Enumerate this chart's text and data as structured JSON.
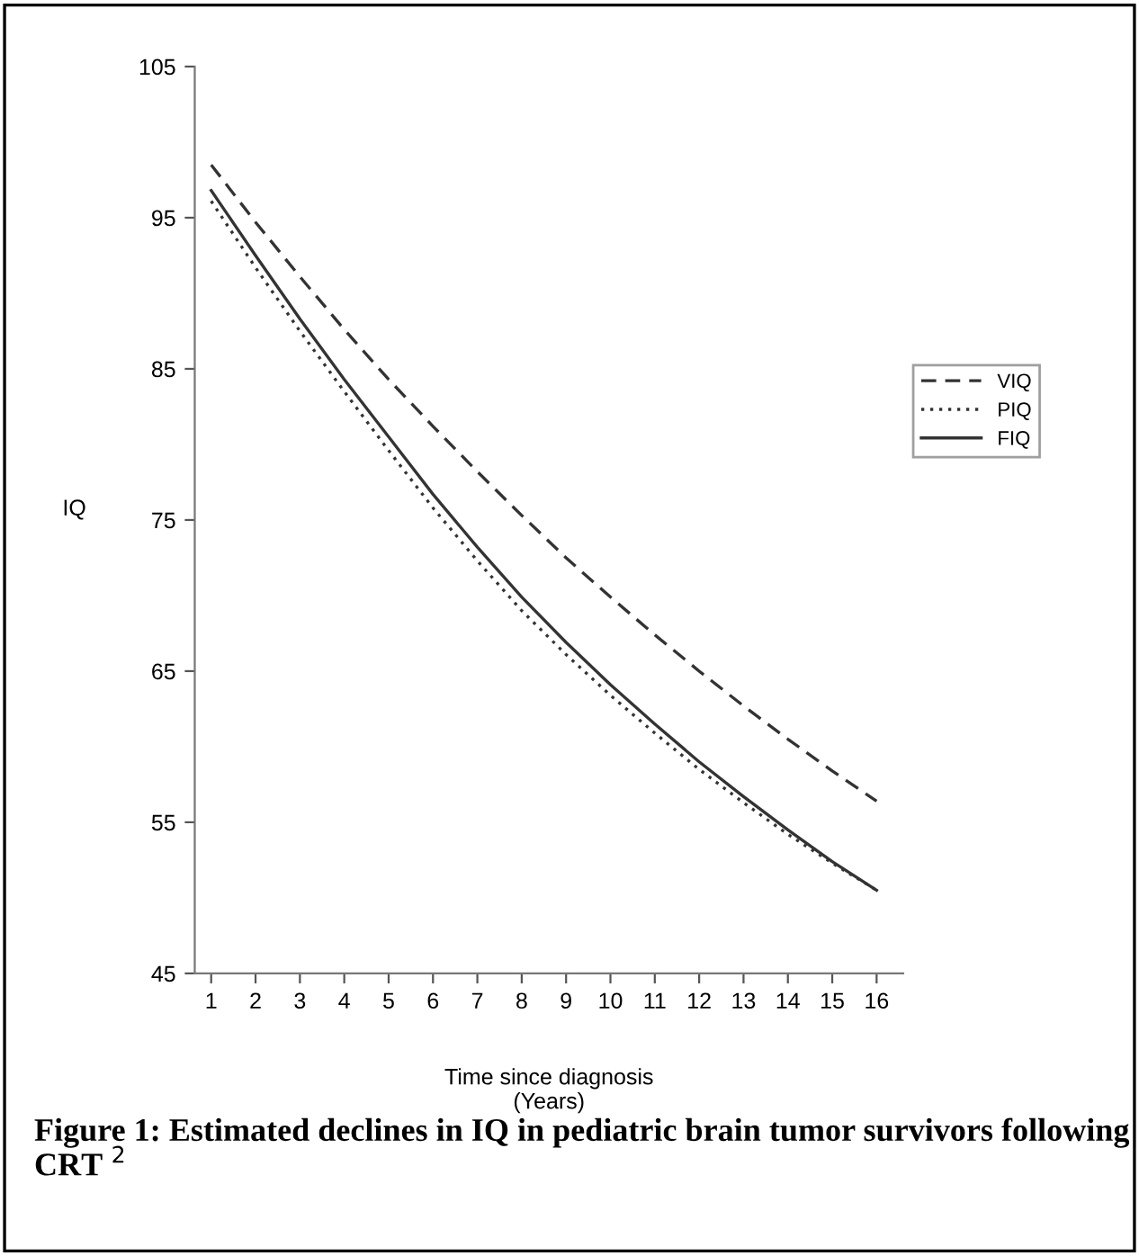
{
  "chart_data": {
    "type": "line",
    "xlabel": "Time since diagnosis\n(Years)",
    "ylabel": "IQ",
    "annotations": [
      "Figure 1: Estimated declines in IQ in pediatric brain tumor survivors following CRT $^{2}$"
    ],
    "x": [
      1,
      2,
      3,
      4,
      5,
      6,
      7,
      8,
      9,
      10,
      11,
      12,
      13,
      14,
      15,
      16
    ],
    "series": [
      {
        "name": "VIQ",
        "color": "#333333",
        "line_style": "dashed",
        "values": [
          98.5,
          94.7,
          91.1,
          87.6,
          84.3,
          81.2,
          78.2,
          75.3,
          72.5,
          69.9,
          67.4,
          65,
          62.7,
          60.5,
          58.4,
          56.4
        ]
      },
      {
        "name": "PIQ",
        "color": "#333333",
        "line_style": "dotted",
        "values": [
          96.1,
          91.7,
          87.5,
          83.5,
          79.6,
          75.8,
          72.3,
          69,
          66.1,
          63.4,
          60.9,
          58.5,
          56.3,
          54.2,
          52.3,
          50.5
        ]
      },
      {
        "name": "FIQ",
        "color": "#333333",
        "line_style": "solid",
        "values": [
          96.8,
          92.5,
          88.3,
          84.3,
          80.5,
          76.7,
          73.2,
          69.9,
          66.9,
          64.1,
          61.5,
          59,
          56.7,
          54.5,
          52.4,
          50.5
        ]
      }
    ],
    "xlim": [
      0.63,
      16.6
    ],
    "xticks": [
      1,
      2,
      3,
      4,
      5,
      6,
      7,
      8,
      9,
      10,
      11,
      12,
      13,
      14,
      15,
      16
    ],
    "ylim": [
      45,
      105
    ],
    "yticks": [
      45,
      55,
      65,
      75,
      85,
      95,
      105
    ],
    "grid": false,
    "legend": "right",
    "marker": "none"
  }
}
